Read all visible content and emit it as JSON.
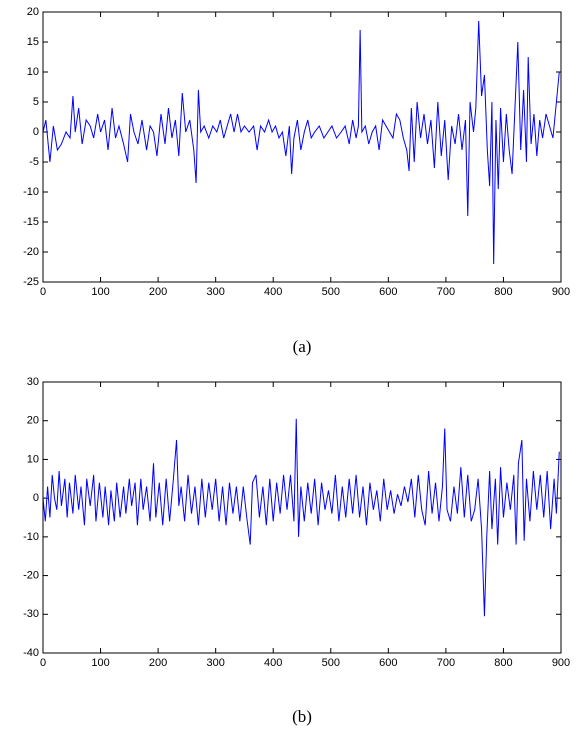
{
  "chart_data": [
    {
      "type": "line",
      "caption": "(a)",
      "color": "#0000ff",
      "x": [
        0,
        5,
        12,
        18,
        25,
        32,
        40,
        47,
        52,
        56,
        62,
        68,
        75,
        82,
        88,
        95,
        100,
        107,
        113,
        120,
        126,
        132,
        140,
        147,
        152,
        158,
        165,
        172,
        180,
        186,
        192,
        198,
        205,
        212,
        218,
        224,
        230,
        236,
        242,
        248,
        255,
        262,
        266,
        270,
        274,
        280,
        288,
        295,
        302,
        308,
        314,
        320,
        326,
        332,
        338,
        344,
        350,
        358,
        366,
        372,
        378,
        385,
        392,
        398,
        404,
        410,
        416,
        422,
        428,
        432,
        436,
        442,
        448,
        454,
        460,
        466,
        472,
        480,
        488,
        495,
        502,
        510,
        518,
        525,
        532,
        538,
        544,
        548,
        551,
        554,
        560,
        566,
        572,
        578,
        584,
        590,
        596,
        602,
        608,
        614,
        620,
        626,
        632,
        636,
        640,
        645,
        650,
        656,
        662,
        668,
        674,
        680,
        686,
        692,
        698,
        704,
        710,
        716,
        722,
        728,
        734,
        738,
        742,
        748,
        752,
        757,
        762,
        767,
        772,
        776,
        780,
        783,
        787,
        791,
        795,
        800,
        805,
        810,
        815,
        820,
        825,
        830,
        835,
        840,
        843,
        848,
        853,
        858,
        863,
        868,
        874,
        880,
        886,
        892,
        897
      ],
      "values": [
        0,
        2,
        -5,
        1,
        -3,
        -2,
        0,
        -1,
        6,
        0,
        4,
        -2,
        2,
        1,
        -1,
        3,
        0,
        2,
        -3,
        4,
        -1,
        1,
        -2,
        -5,
        3,
        0,
        -2,
        2,
        -3,
        1,
        0,
        -4,
        3,
        -2,
        4,
        -1,
        2,
        -4,
        6.5,
        0,
        2,
        -3,
        -8.5,
        7,
        0,
        1,
        -1,
        1,
        0,
        2,
        -1,
        1,
        3,
        0,
        3,
        0,
        1,
        0,
        1,
        -3,
        1,
        0,
        2,
        0,
        1,
        -1,
        0,
        -4,
        1,
        -7,
        -1,
        2,
        -3,
        0,
        2,
        -1,
        0,
        1,
        -1,
        0,
        1,
        -1,
        0,
        1,
        -2,
        2,
        -1,
        1,
        17,
        0,
        1,
        -2,
        0,
        1,
        -3,
        2,
        1,
        0,
        -1,
        3,
        2,
        -1,
        -3,
        -6.5,
        4,
        -5,
        5,
        -1,
        3,
        -2,
        2,
        -6,
        5,
        -4,
        2,
        -8,
        1,
        -2,
        3,
        -3,
        2,
        -14,
        5,
        0,
        4,
        18.5,
        6,
        9.5,
        -3,
        -9,
        5,
        -22,
        2,
        -9.5,
        4,
        -5,
        3,
        -3,
        -7,
        4,
        15,
        -3,
        7,
        -5,
        12.5,
        -2,
        3,
        -4,
        2,
        -1,
        3,
        1,
        -1,
        5,
        10
      ],
      "xlim": [
        0,
        900
      ],
      "xticks": [
        0,
        100,
        200,
        300,
        400,
        500,
        600,
        700,
        800,
        900
      ],
      "ylim": [
        -25,
        20
      ],
      "yticks": [
        -25,
        -20,
        -15,
        -10,
        -5,
        0,
        5,
        10,
        15,
        20
      ]
    },
    {
      "type": "line",
      "caption": "(b)",
      "color": "#0000ff",
      "x": [
        0,
        4,
        8,
        12,
        16,
        20,
        24,
        28,
        32,
        38,
        42,
        46,
        52,
        56,
        62,
        66,
        72,
        76,
        82,
        88,
        92,
        98,
        104,
        108,
        114,
        118,
        124,
        128,
        134,
        140,
        144,
        150,
        154,
        160,
        164,
        170,
        174,
        180,
        186,
        192,
        196,
        202,
        208,
        214,
        220,
        226,
        232,
        236,
        240,
        246,
        252,
        258,
        264,
        270,
        276,
        282,
        288,
        294,
        300,
        306,
        312,
        318,
        324,
        330,
        336,
        342,
        348,
        354,
        360,
        364,
        370,
        376,
        382,
        388,
        394,
        400,
        406,
        412,
        418,
        424,
        430,
        436,
        440,
        444,
        448,
        454,
        460,
        466,
        472,
        478,
        484,
        490,
        496,
        502,
        508,
        514,
        520,
        526,
        532,
        538,
        544,
        550,
        556,
        562,
        568,
        574,
        580,
        586,
        592,
        598,
        604,
        610,
        616,
        622,
        628,
        634,
        640,
        646,
        652,
        658,
        664,
        670,
        676,
        682,
        688,
        694,
        698,
        702,
        708,
        714,
        720,
        726,
        732,
        738,
        744,
        750,
        756,
        762,
        767,
        771,
        776,
        780,
        786,
        790,
        795,
        800,
        806,
        812,
        818,
        822,
        826,
        832,
        836,
        840,
        846,
        852,
        858,
        864,
        870,
        876,
        882,
        888,
        892,
        897
      ],
      "values": [
        0,
        -6,
        3,
        -5,
        6,
        0,
        -3,
        7,
        -2,
        5,
        -5,
        4,
        -4,
        6,
        -3,
        3,
        -7,
        5,
        -2,
        6,
        -6,
        4,
        -5,
        3,
        -7,
        2,
        -6,
        4,
        -5,
        3,
        -4,
        5,
        -2,
        4,
        -7,
        5,
        -3,
        3,
        -6,
        9,
        -5,
        4,
        -7,
        5,
        -6,
        4,
        15,
        -2,
        3,
        -6,
        6,
        -4,
        3,
        -7,
        5,
        -5,
        4,
        -3,
        5,
        -6,
        3,
        -7,
        4,
        -4,
        3,
        -6,
        3,
        -5,
        -12,
        4,
        6,
        -5,
        3,
        -7,
        5,
        -6,
        4,
        -4,
        6,
        -3,
        6,
        -6,
        20.5,
        -10,
        3,
        -6,
        4,
        -4,
        5,
        -7,
        4,
        -3,
        2,
        -4,
        6,
        -6,
        3,
        -5,
        5,
        -4,
        6,
        -5,
        3,
        -7,
        4,
        -3,
        2,
        -6,
        5,
        -3,
        2,
        -4,
        1,
        -2,
        3,
        -1,
        5,
        -5,
        6,
        -3,
        -7,
        7,
        -4,
        4,
        -6,
        3,
        18,
        -3,
        -6,
        3,
        -4,
        8,
        -5,
        6,
        -6,
        -3,
        5,
        -8,
        -30.5,
        -10,
        7,
        -8,
        5,
        -12,
        8,
        -5,
        4,
        -3,
        6,
        -12,
        9,
        15,
        -11,
        5,
        -6,
        7,
        -3,
        6,
        -5,
        7,
        -8,
        5,
        -4,
        12
      ],
      "xlim": [
        0,
        900
      ],
      "xticks": [
        0,
        100,
        200,
        300,
        400,
        500,
        600,
        700,
        800,
        900
      ],
      "ylim": [
        -40,
        30
      ],
      "yticks": [
        -40,
        -30,
        -20,
        -10,
        0,
        10,
        20,
        30
      ]
    }
  ]
}
